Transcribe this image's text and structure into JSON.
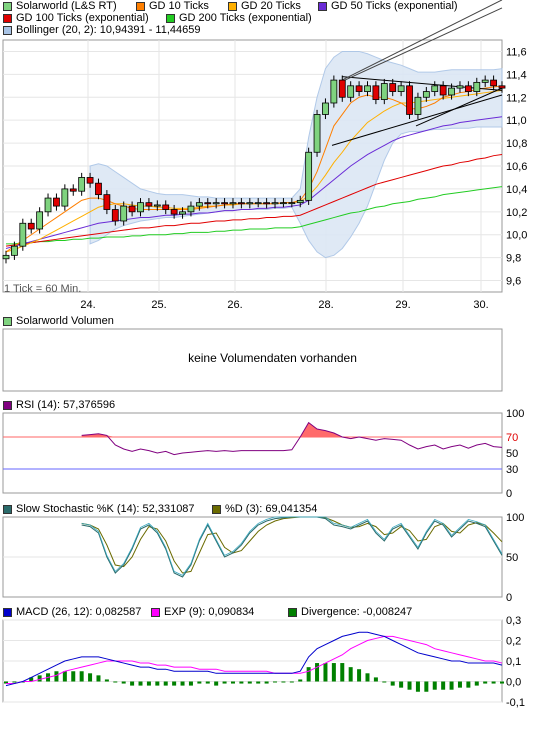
{
  "main": {
    "legend": [
      {
        "label": "Solarworld (L&S RT)",
        "color": "#7fd37f"
      },
      {
        "label": "GD 10 Ticks",
        "color": "#ff7f00"
      },
      {
        "label": "GD 20 Ticks",
        "color": "#ffb000"
      },
      {
        "label": "GD 50 Ticks (exponential)",
        "color": "#6a2bd6"
      },
      {
        "label": "GD 100 Ticks (exponential)",
        "color": "#e00000"
      },
      {
        "label": "GD 200 Ticks (exponential)",
        "color": "#22cc22"
      },
      {
        "label": "Bollinger (20, 2): 10,94391 - 11,44659",
        "color": "#a9c4e6"
      }
    ],
    "tick_note": "1 Tick = 60 Min.",
    "x_labels": [
      "24.",
      "25.",
      "26.",
      "28.",
      "29.",
      "30."
    ],
    "y_ticks": [
      "11,6",
      "11,4",
      "11,2",
      "11,0",
      "10,8",
      "10,6",
      "10,4",
      "10,2",
      "10,0",
      "9,8",
      "9,6"
    ]
  },
  "volume": {
    "title": "Solarworld Volumen",
    "message": "keine Volumendaten vorhanden",
    "color": "#7fd37f"
  },
  "rsi": {
    "title": "RSI (14): 57,376596",
    "color": "#800080",
    "y_ticks": [
      "100",
      "70",
      "50",
      "30",
      "0"
    ]
  },
  "stoch": {
    "k_title": "Slow Stochastic %K (14): 52,331087",
    "d_title": "%D (3): 69,041354",
    "k_color": "#2a6b6b",
    "d_color": "#6b6b00",
    "y_ticks": [
      "100",
      "50",
      "0"
    ]
  },
  "macd": {
    "title": "MACD (26, 12): 0,082587",
    "exp_title": "EXP (9): 0,090834",
    "div_title": "Divergence: -0,008247",
    "macd_color": "#0000cc",
    "exp_color": "#ff00ff",
    "div_color": "#008000",
    "y_ticks": [
      "0,3",
      "0,2",
      "0,1",
      "0,0",
      "-0,1"
    ]
  },
  "chart_data": {
    "type": "line",
    "x_labels": [
      "24.",
      "25.",
      "26.",
      "28.",
      "29.",
      "30."
    ],
    "price": [
      9.82,
      9.9,
      10.1,
      10.05,
      10.2,
      10.32,
      10.25,
      10.4,
      10.38,
      10.5,
      10.45,
      10.35,
      10.22,
      10.12,
      10.25,
      10.2,
      10.28,
      10.25,
      10.26,
      10.22,
      10.18,
      10.2,
      10.25,
      10.28,
      10.27,
      10.28,
      10.27,
      10.28,
      10.27,
      10.28,
      10.28,
      10.27,
      10.28,
      10.28,
      10.28,
      10.3,
      10.72,
      11.05,
      11.15,
      11.35,
      11.2,
      11.3,
      11.25,
      11.3,
      11.18,
      11.32,
      11.25,
      11.3,
      11.05,
      11.2,
      11.25,
      11.3,
      11.22,
      11.28,
      11.3,
      11.25,
      11.33,
      11.35,
      11.3,
      11.28
    ],
    "gd10": [
      9.85,
      9.9,
      9.95,
      10.0,
      10.05,
      10.1,
      10.15,
      10.2,
      10.25,
      10.3,
      10.32,
      10.32,
      10.3,
      10.27,
      10.25,
      10.23,
      10.22,
      10.22,
      10.22,
      10.22,
      10.22,
      10.22,
      10.22,
      10.23,
      10.24,
      10.25,
      10.26,
      10.27,
      10.27,
      10.27,
      10.27,
      10.27,
      10.27,
      10.28,
      10.28,
      10.3,
      10.4,
      10.55,
      10.75,
      10.95,
      11.05,
      11.15,
      11.2,
      11.22,
      11.2,
      11.2,
      11.18,
      11.15,
      11.1,
      11.1,
      11.12,
      11.15,
      11.2,
      11.22,
      11.24,
      11.25,
      11.27,
      11.28,
      11.29,
      11.3
    ],
    "gd20": [
      9.85,
      9.87,
      9.9,
      9.93,
      9.96,
      10.0,
      10.04,
      10.08,
      10.12,
      10.16,
      10.2,
      10.24,
      10.26,
      10.27,
      10.27,
      10.26,
      10.25,
      10.25,
      10.24,
      10.24,
      10.23,
      10.23,
      10.23,
      10.24,
      10.25,
      10.25,
      10.26,
      10.26,
      10.27,
      10.27,
      10.27,
      10.27,
      10.27,
      10.28,
      10.28,
      10.29,
      10.34,
      10.42,
      10.52,
      10.63,
      10.72,
      10.82,
      10.9,
      10.98,
      11.03,
      11.08,
      11.12,
      11.15,
      11.15,
      11.16,
      11.17,
      11.18,
      11.19,
      11.2,
      11.21,
      11.22,
      11.23,
      11.24,
      11.25,
      11.26
    ],
    "ema50": [
      9.88,
      9.9,
      9.92,
      9.94,
      9.96,
      9.98,
      10.0,
      10.02,
      10.04,
      10.06,
      10.08,
      10.1,
      10.11,
      10.12,
      10.13,
      10.14,
      10.15,
      10.15,
      10.16,
      10.17,
      10.17,
      10.18,
      10.18,
      10.19,
      10.19,
      10.2,
      10.21,
      10.21,
      10.22,
      10.22,
      10.23,
      10.23,
      10.24,
      10.24,
      10.25,
      10.26,
      10.3,
      10.36,
      10.42,
      10.48,
      10.54,
      10.6,
      10.65,
      10.7,
      10.74,
      10.78,
      10.82,
      10.85,
      10.87,
      10.89,
      10.91,
      10.93,
      10.95,
      10.96,
      10.98,
      10.99,
      11.0,
      11.01,
      11.02,
      11.03
    ],
    "ema100": [
      9.9,
      9.91,
      9.92,
      9.93,
      9.94,
      9.95,
      9.96,
      9.97,
      9.98,
      9.99,
      10.0,
      10.01,
      10.02,
      10.03,
      10.04,
      10.05,
      10.06,
      10.06,
      10.07,
      10.08,
      10.08,
      10.09,
      10.1,
      10.1,
      10.11,
      10.12,
      10.12,
      10.13,
      10.13,
      10.14,
      10.14,
      10.15,
      10.15,
      10.16,
      10.16,
      10.17,
      10.2,
      10.23,
      10.26,
      10.29,
      10.32,
      10.35,
      10.38,
      10.41,
      10.44,
      10.46,
      10.48,
      10.5,
      10.52,
      10.54,
      10.56,
      10.58,
      10.6,
      10.61,
      10.63,
      10.64,
      10.66,
      10.67,
      10.69,
      10.7
    ],
    "ema200": [
      9.92,
      9.92,
      9.93,
      9.93,
      9.94,
      9.94,
      9.95,
      9.95,
      9.96,
      9.96,
      9.97,
      9.97,
      9.98,
      9.98,
      9.98,
      9.99,
      9.99,
      10.0,
      10.0,
      10.0,
      10.01,
      10.01,
      10.02,
      10.02,
      10.02,
      10.03,
      10.03,
      10.04,
      10.04,
      10.05,
      10.05,
      10.05,
      10.06,
      10.06,
      10.06,
      10.07,
      10.09,
      10.11,
      10.13,
      10.15,
      10.17,
      10.19,
      10.2,
      10.22,
      10.24,
      10.25,
      10.27,
      10.28,
      10.29,
      10.31,
      10.32,
      10.33,
      10.35,
      10.36,
      10.37,
      10.38,
      10.39,
      10.4,
      10.41,
      10.42
    ],
    "boll_upper": [
      null,
      null,
      null,
      null,
      null,
      null,
      null,
      null,
      null,
      null,
      10.6,
      10.62,
      10.6,
      10.55,
      10.5,
      10.45,
      10.4,
      10.38,
      10.36,
      10.35,
      10.35,
      10.35,
      10.34,
      10.33,
      10.33,
      10.32,
      10.32,
      10.32,
      10.32,
      10.32,
      10.32,
      10.32,
      10.32,
      10.32,
      10.32,
      10.4,
      10.85,
      11.2,
      11.45,
      11.55,
      11.6,
      11.6,
      11.6,
      11.58,
      11.55,
      11.52,
      11.5,
      11.48,
      11.45,
      11.42,
      11.42,
      11.42,
      11.43,
      11.44,
      11.44,
      11.44,
      11.44,
      11.44,
      11.44,
      11.45
    ],
    "boll_lower": [
      null,
      null,
      null,
      null,
      null,
      null,
      null,
      null,
      null,
      null,
      9.92,
      9.95,
      10.0,
      10.05,
      10.08,
      10.1,
      10.12,
      10.13,
      10.14,
      10.15,
      10.15,
      10.16,
      10.17,
      10.18,
      10.19,
      10.2,
      10.21,
      10.21,
      10.22,
      10.22,
      10.22,
      10.22,
      10.23,
      10.23,
      10.24,
      10.1,
      9.95,
      9.85,
      9.8,
      9.82,
      9.88,
      9.98,
      10.1,
      10.25,
      10.45,
      10.65,
      10.8,
      10.88,
      10.9,
      10.9,
      10.91,
      10.92,
      10.92,
      10.93,
      10.93,
      10.93,
      10.94,
      10.94,
      10.94,
      10.94
    ],
    "rsi": [
      null,
      null,
      null,
      null,
      null,
      null,
      null,
      null,
      null,
      72,
      73,
      74,
      72,
      60,
      55,
      52,
      55,
      53,
      50,
      52,
      48,
      50,
      51,
      52,
      53,
      52,
      53,
      52,
      53,
      53,
      53,
      53,
      53,
      53,
      54,
      70,
      88,
      80,
      78,
      75,
      70,
      68,
      70,
      68,
      66,
      68,
      67,
      66,
      60,
      55,
      58,
      60,
      55,
      58,
      60,
      56,
      60,
      62,
      58,
      57
    ],
    "stoch_k": [
      null,
      null,
      null,
      null,
      null,
      null,
      null,
      null,
      null,
      90,
      88,
      80,
      50,
      30,
      40,
      60,
      85,
      90,
      80,
      60,
      30,
      25,
      40,
      70,
      90,
      70,
      50,
      55,
      65,
      80,
      90,
      95,
      98,
      99,
      100,
      100,
      100,
      100,
      98,
      90,
      88,
      85,
      90,
      95,
      80,
      70,
      85,
      90,
      75,
      60,
      80,
      95,
      90,
      75,
      85,
      95,
      92,
      88,
      70,
      52
    ],
    "stoch_d": [
      null,
      null,
      null,
      null,
      null,
      null,
      null,
      null,
      null,
      92,
      90,
      85,
      65,
      40,
      38,
      50,
      72,
      88,
      85,
      70,
      45,
      30,
      32,
      55,
      78,
      80,
      62,
      55,
      58,
      70,
      82,
      90,
      95,
      98,
      99,
      100,
      100,
      100,
      99,
      95,
      90,
      87,
      88,
      92,
      88,
      78,
      80,
      88,
      83,
      70,
      72,
      88,
      92,
      82,
      80,
      90,
      93,
      90,
      80,
      69
    ],
    "macd": [
      -0.02,
      -0.01,
      0.0,
      0.02,
      0.04,
      0.06,
      0.08,
      0.1,
      0.11,
      0.12,
      0.12,
      0.12,
      0.11,
      0.1,
      0.09,
      0.08,
      0.07,
      0.07,
      0.06,
      0.06,
      0.05,
      0.05,
      0.05,
      0.05,
      0.05,
      0.04,
      0.04,
      0.04,
      0.04,
      0.04,
      0.04,
      0.04,
      0.04,
      0.04,
      0.04,
      0.05,
      0.12,
      0.16,
      0.18,
      0.2,
      0.22,
      0.23,
      0.24,
      0.24,
      0.23,
      0.22,
      0.2,
      0.18,
      0.16,
      0.14,
      0.13,
      0.12,
      0.11,
      0.1,
      0.1,
      0.09,
      0.09,
      0.09,
      0.09,
      0.08
    ],
    "exp": [
      -0.01,
      -0.01,
      0.0,
      0.0,
      0.01,
      0.02,
      0.03,
      0.05,
      0.06,
      0.07,
      0.08,
      0.09,
      0.1,
      0.1,
      0.1,
      0.1,
      0.09,
      0.09,
      0.08,
      0.08,
      0.07,
      0.07,
      0.07,
      0.06,
      0.06,
      0.06,
      0.05,
      0.05,
      0.05,
      0.05,
      0.05,
      0.05,
      0.04,
      0.04,
      0.04,
      0.04,
      0.05,
      0.07,
      0.09,
      0.11,
      0.13,
      0.16,
      0.18,
      0.2,
      0.21,
      0.22,
      0.22,
      0.21,
      0.2,
      0.19,
      0.18,
      0.16,
      0.15,
      0.14,
      0.13,
      0.12,
      0.11,
      0.1,
      0.1,
      0.09
    ]
  }
}
